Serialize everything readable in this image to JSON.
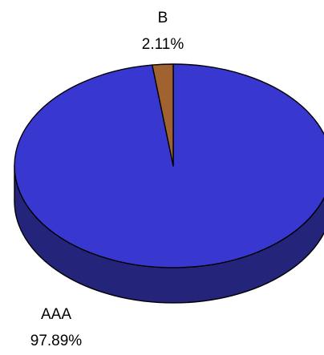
{
  "chart_data": {
    "type": "pie",
    "style": "3d",
    "slices": [
      {
        "label": "AAA",
        "percent_label": "97.89%",
        "value": 97.89,
        "color": "#3838d0",
        "side_color": "#24247a"
      },
      {
        "label": "B",
        "percent_label": "2.11%",
        "value": 2.11,
        "color": "#a0622e",
        "side_color": "#5e3818"
      }
    ]
  }
}
